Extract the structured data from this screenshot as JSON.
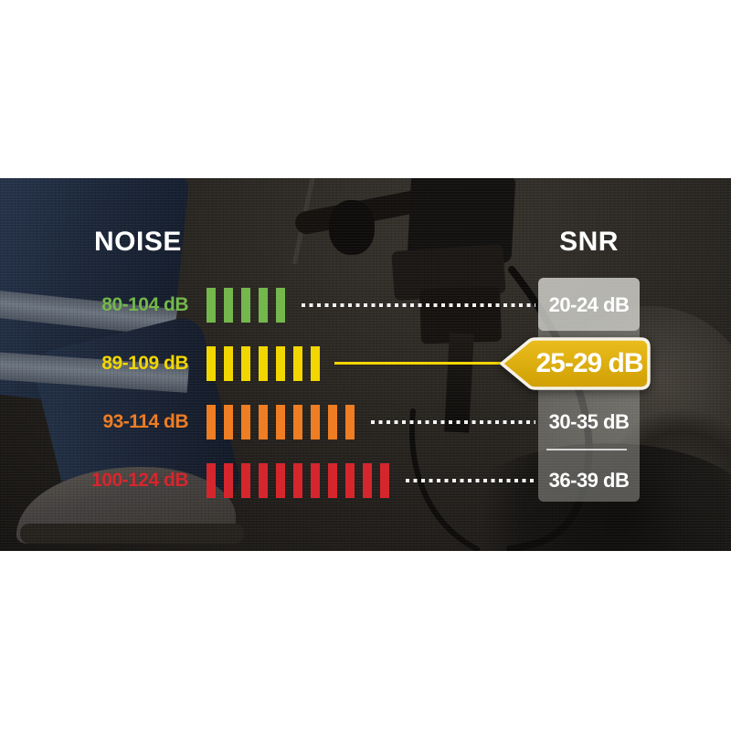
{
  "header": {
    "noise": "NOISE",
    "snr": "SNR"
  },
  "rows": [
    {
      "noise": "80-104 dB",
      "snr": "20-24 dB",
      "bars": 5,
      "color": "#74b74c",
      "connector": "dotted",
      "highlighted": false
    },
    {
      "noise": "89-109 dB",
      "snr": "25-29 dB",
      "bars": 7,
      "color": "#f2d600",
      "connector": "solid",
      "highlighted": true
    },
    {
      "noise": "93-114 dB",
      "snr": "30-35 dB",
      "bars": 9,
      "color": "#ee7d23",
      "connector": "dotted",
      "highlighted": false
    },
    {
      "noise": "100-124 dB",
      "snr": "36-39 dB",
      "bars": 11,
      "color": "#d6262d",
      "connector": "dotted",
      "highlighted": false
    }
  ],
  "badge": {
    "fill_top": "#eabd1d",
    "fill_bottom": "#cf9f03",
    "border": "#f6f2e7"
  },
  "colors": {
    "title_text": "#ffffff",
    "dotted_line": "#ffffff",
    "solid_line": "#f2d600",
    "snr_text": "#ffffff",
    "panel_bg": "rgba(185,185,180,0.42)",
    "panel_box_bg": "rgba(228,228,222,0.62)"
  },
  "chart_data": {
    "type": "table",
    "title": "NOISE vs SNR",
    "columns": [
      "NOISE",
      "SNR"
    ],
    "rows": [
      [
        "80-104 dB",
        "20-24 dB"
      ],
      [
        "89-109 dB",
        "25-29 dB"
      ],
      [
        "93-114 dB",
        "30-35 dB"
      ],
      [
        "100-124 dB",
        "36-39 dB"
      ]
    ],
    "bar_counts": [
      5,
      7,
      9,
      11
    ],
    "row_colors": [
      "green",
      "yellow",
      "orange",
      "red"
    ],
    "highlighted_row_index": 1,
    "legend_position": "none",
    "grid": false
  }
}
